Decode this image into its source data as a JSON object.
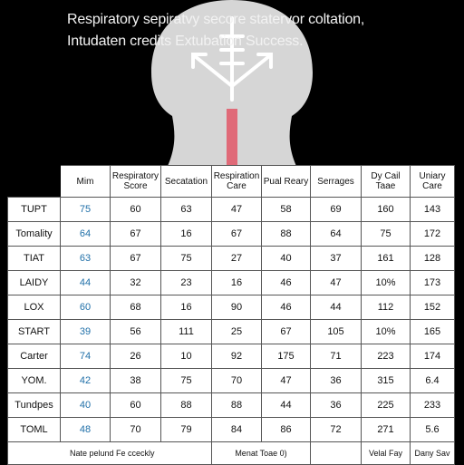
{
  "title": {
    "line1": "Respiratory sepiratvy secore statervor coltation,",
    "line2": "Intudaten credits Extubation Success."
  },
  "colors": {
    "background": "#000000",
    "airway": "#e06a78",
    "first_column_text": "#1f6fa8"
  },
  "table": {
    "headers": [
      "Mim",
      "Respiratory Score",
      "Secatation",
      "Respiration Care",
      "Pual Reary",
      "Serrages",
      "Dy Cail Taae",
      "Uniary Care"
    ],
    "rows": [
      {
        "label": "TUPT",
        "values": [
          "75",
          "60",
          "63",
          "47",
          "58",
          "69",
          "160",
          "143"
        ]
      },
      {
        "label": "Tomality",
        "values": [
          "64",
          "67",
          "16",
          "67",
          "88",
          "64",
          "75",
          "172"
        ]
      },
      {
        "label": "TIAT",
        "values": [
          "63",
          "67",
          "75",
          "27",
          "40",
          "37",
          "161",
          "128"
        ]
      },
      {
        "label": "LAIDY",
        "values": [
          "44",
          "32",
          "23",
          "16",
          "46",
          "47",
          "10%",
          "173"
        ]
      },
      {
        "label": "LOX",
        "values": [
          "60",
          "68",
          "16",
          "90",
          "46",
          "44",
          "112",
          "152"
        ]
      },
      {
        "label": "START",
        "values": [
          "39",
          "56",
          "111",
          "25",
          "67",
          "105",
          "10%",
          "165"
        ]
      },
      {
        "label": "Carter",
        "values": [
          "74",
          "26",
          "10",
          "92",
          "175",
          "71",
          "223",
          "174"
        ]
      },
      {
        "label": "YOM.",
        "values": [
          "42",
          "38",
          "75",
          "70",
          "47",
          "36",
          "315",
          "6.4"
        ]
      },
      {
        "label": "Tundpes",
        "values": [
          "40",
          "60",
          "88",
          "88",
          "44",
          "36",
          "225",
          "233"
        ]
      },
      {
        "label": "TOML",
        "values": [
          "48",
          "70",
          "79",
          "84",
          "86",
          "72",
          "271",
          "5.6"
        ]
      }
    ],
    "footer": {
      "note": "Nate pelund Fe cceckly",
      "middle": "Menat Toae 0)",
      "right1": "Velal Fay",
      "right2": "Dany Sav"
    }
  }
}
